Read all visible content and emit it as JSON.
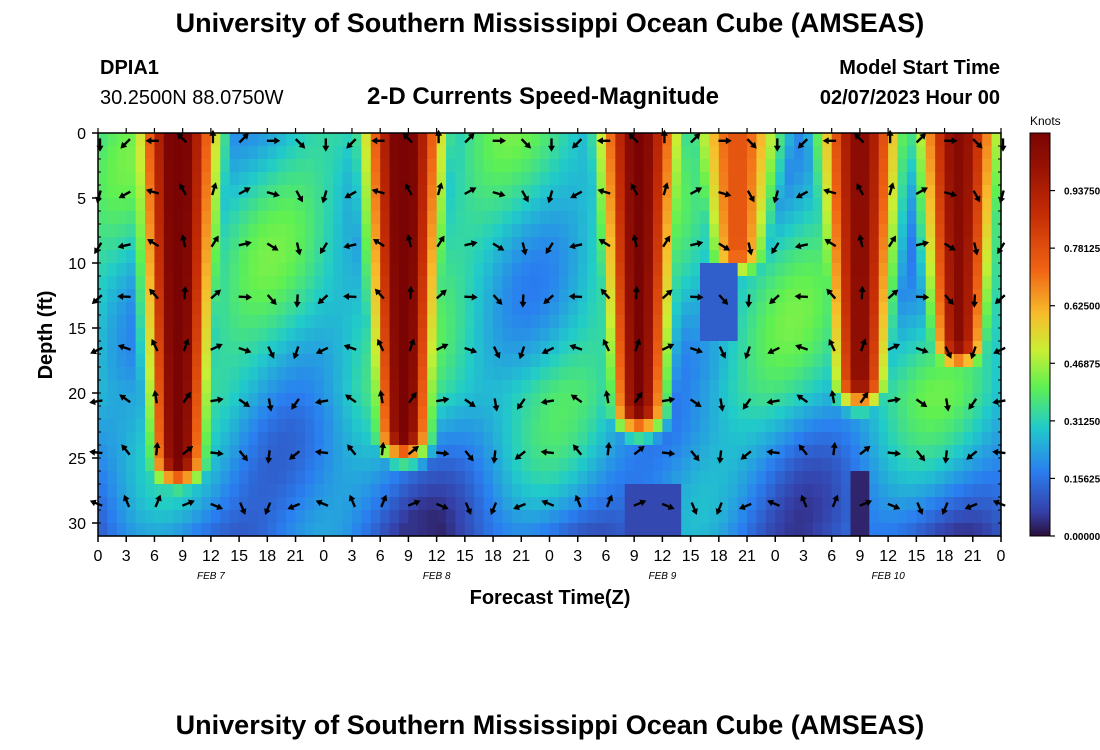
{
  "page": {
    "title": "University of Southern Mississippi Ocean Cube (AMSEAS)",
    "station_id": "DPIA1",
    "coords": "30.2500N  88.0750W",
    "plot_title": "2-D Currents Speed-Magnitude",
    "model_start_label": "Model Start Time",
    "model_start_value": "02/07/2023 Hour 00",
    "footer_title": "University of Southern Mississippi Ocean Cube (AMSEAS)"
  },
  "chart_data": {
    "type": "heatmap",
    "title": "2-D Currents Speed-Magnitude",
    "xlabel": "Forecast Time(Z)",
    "ylabel": "Depth (ft)",
    "x_tick_labels": [
      "0",
      "3",
      "6",
      "9",
      "12",
      "15",
      "18",
      "21",
      "0",
      "3",
      "6",
      "9",
      "12",
      "15",
      "18",
      "21",
      "0",
      "3",
      "6",
      "9",
      "12",
      "15",
      "18",
      "21",
      "0",
      "3",
      "6",
      "9",
      "12",
      "15",
      "18",
      "21",
      "0"
    ],
    "x_range_hours": [
      0,
      96
    ],
    "y_range_ft": [
      0,
      31
    ],
    "y_ticks": [
      "0",
      "5",
      "10",
      "15",
      "20",
      "25",
      "30"
    ],
    "y_tick_values": [
      0,
      5,
      10,
      15,
      20,
      25,
      30
    ],
    "date_labels": [
      {
        "label": "FEB 7",
        "hour": 12
      },
      {
        "label": "FEB 8",
        "hour": 36
      },
      {
        "label": "FEB 9",
        "hour": 60
      },
      {
        "label": "FEB 10",
        "hour": 84
      }
    ],
    "colorbar": {
      "unit": "Knots",
      "min": 0,
      "max": 1.09375,
      "tick_values": [
        0.0,
        0.15625,
        0.3125,
        0.46875,
        0.625,
        0.78125,
        0.9375
      ],
      "tick_labels": [
        "0.00000",
        "0.15625",
        "0.31250",
        "0.46875",
        "0.62500",
        "0.78125",
        "0.93750"
      ]
    },
    "speed_maxima_knots": [
      {
        "center_hour": 8.5,
        "peak": 1.09,
        "to_depth_ft": 25
      },
      {
        "center_hour": 32.5,
        "peak": 1.09,
        "to_depth_ft": 23
      },
      {
        "center_hour": 57.5,
        "peak": 1.05,
        "to_depth_ft": 21
      },
      {
        "center_hour": 68.0,
        "peak": 0.72,
        "to_depth_ft": 9
      },
      {
        "center_hour": 81.0,
        "peak": 1.0,
        "to_depth_ft": 19
      },
      {
        "center_hour": 91.5,
        "peak": 1.0,
        "to_depth_ft": 16
      }
    ],
    "arrow_depths_ft": [
      0,
      4,
      8,
      12,
      16,
      20,
      24,
      28
    ]
  }
}
